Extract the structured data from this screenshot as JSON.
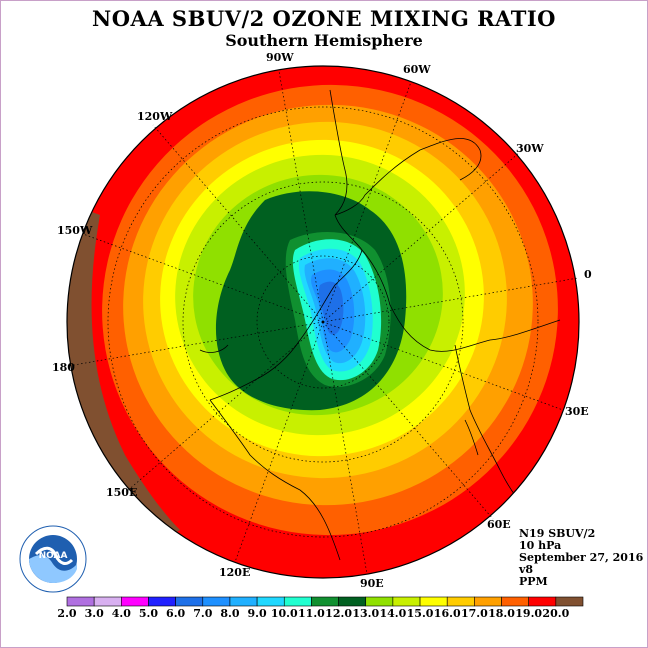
{
  "title": "NOAA SBUV/2 OZONE MIXING RATIO",
  "subtitle": "Southern Hemisphere",
  "longitude_labels": [
    "90W",
    "60W",
    "30W",
    "0",
    "30E",
    "60E",
    "90E",
    "120E",
    "150E",
    "180",
    "150W",
    "120W"
  ],
  "info": {
    "instrument": "N19 SBUV/2",
    "pressure": "10 hPa",
    "date": "September 27, 2016",
    "version": "v8",
    "units": "PPM"
  },
  "logo_text": "NOAA",
  "colorbar": {
    "ticks": [
      "2.0",
      "3.0",
      "4.0",
      "5.0",
      "6.0",
      "7.0",
      "8.0",
      "9.0",
      "10.0",
      "11.0",
      "12.0",
      "13.0",
      "14.0",
      "15.0",
      "16.0",
      "17.0",
      "18.0",
      "19.0",
      "20.0"
    ],
    "colors": [
      "#b070e0",
      "#d8b0f0",
      "#ff00ff",
      "#2020ff",
      "#1e70e8",
      "#1e90ff",
      "#20b0ff",
      "#20d8ff",
      "#20ffd0",
      "#109030",
      "#006020",
      "#90e000",
      "#c8f000",
      "#ffff00",
      "#ffcc00",
      "#ffa000",
      "#ff6000",
      "#ff0000",
      "#805030"
    ]
  },
  "colors": {
    "outer": "#ff0000",
    "ocean_edge": "#805030"
  }
}
